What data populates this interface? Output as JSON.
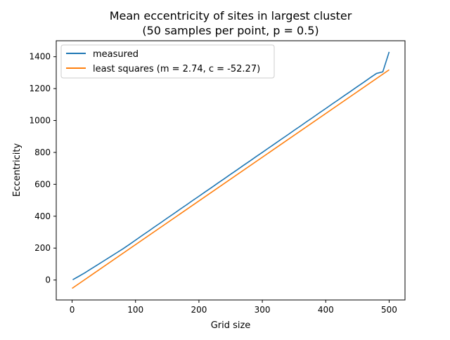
{
  "chart_data": {
    "type": "line",
    "title_line1": "Mean eccentricity of sites in largest cluster",
    "title_line2": "(50 samples per point, p = 0.5)",
    "xlabel": "Grid size",
    "ylabel": "Eccentricity",
    "xlim": [
      -25,
      525
    ],
    "ylim": [
      -125,
      1500
    ],
    "xticks": [
      0,
      100,
      200,
      300,
      400,
      500
    ],
    "yticks": [
      0,
      200,
      400,
      600,
      800,
      1000,
      1200,
      1400
    ],
    "grid": false,
    "legend_position": "top-left",
    "series": [
      {
        "name": "measured",
        "color": "#1f77b4",
        "x": [
          1,
          10,
          20,
          30,
          40,
          50,
          60,
          70,
          80,
          90,
          100,
          110,
          120,
          130,
          140,
          150,
          160,
          170,
          180,
          190,
          200,
          210,
          220,
          230,
          240,
          250,
          260,
          270,
          280,
          290,
          300,
          310,
          320,
          330,
          340,
          350,
          360,
          370,
          380,
          390,
          400,
          410,
          420,
          430,
          440,
          450,
          460,
          470,
          480,
          490,
          500
        ],
        "y": [
          2,
          22,
          45,
          70,
          95,
          120,
          145,
          170,
          195,
          222,
          250,
          278,
          305,
          333,
          360,
          388,
          415,
          443,
          470,
          498,
          525,
          553,
          580,
          608,
          635,
          663,
          690,
          718,
          745,
          773,
          800,
          828,
          855,
          883,
          910,
          938,
          965,
          993,
          1020,
          1048,
          1075,
          1103,
          1130,
          1158,
          1185,
          1213,
          1240,
          1268,
          1295,
          1305,
          1430
        ]
      },
      {
        "name": "least squares (m = 2.74, c = -52.27)",
        "color": "#ff7f0e",
        "m": 2.74,
        "c": -52.27,
        "x": [
          0,
          500
        ],
        "y": [
          -52.27,
          1317.73
        ]
      }
    ]
  }
}
